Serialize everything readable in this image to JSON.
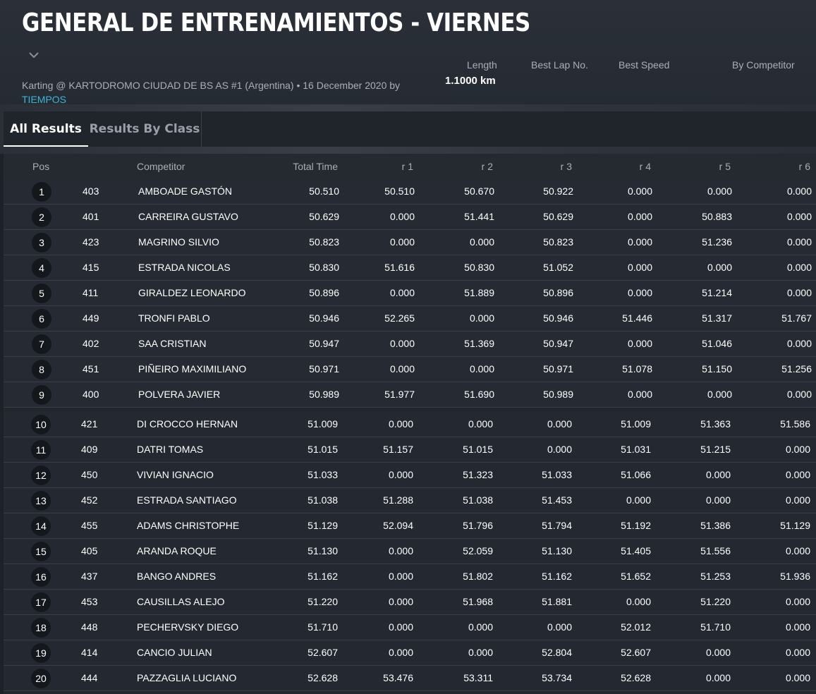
{
  "header": {
    "title": "GENERAL DE ENTRENAMIENTOS - VIERNES",
    "event_info": "Karting @ KARTODROMO CIUDAD DE BS AS #1 (Argentina) • 16 December 2020 by",
    "org_link": "TIEMPOS",
    "stats": {
      "length_label": "Length",
      "length_value": "1.1000 km",
      "best_lap_label": "Best Lap No.",
      "best_speed_label": "Best Speed",
      "by_competitor_label": "By Competitor"
    }
  },
  "tabs": {
    "all_results": "All Results",
    "results_by_class": "Results By Class"
  },
  "table": {
    "columns": {
      "pos": "Pos",
      "competitor": "Competitor",
      "total_time": "Total Time",
      "r1": "r 1",
      "r2": "r 2",
      "r3": "r 3",
      "r4": "r 4",
      "r5": "r 5",
      "r6": "r 6"
    },
    "rows": [
      {
        "pos": "1",
        "num": "403",
        "name": "AMBOADE GASTÓN",
        "total": "50.510",
        "r1": "50.510",
        "r2": "50.670",
        "r3": "50.922",
        "r4": "0.000",
        "r5": "0.000",
        "r6": "0.000"
      },
      {
        "pos": "2",
        "num": "401",
        "name": "CARREIRA GUSTAVO",
        "total": "50.629",
        "r1": "0.000",
        "r2": "51.441",
        "r3": "50.629",
        "r4": "0.000",
        "r5": "50.883",
        "r6": "0.000"
      },
      {
        "pos": "3",
        "num": "423",
        "name": "MAGRINO SILVIO",
        "total": "50.823",
        "r1": "0.000",
        "r2": "0.000",
        "r3": "50.823",
        "r4": "0.000",
        "r5": "51.236",
        "r6": "0.000"
      },
      {
        "pos": "4",
        "num": "415",
        "name": "ESTRADA NICOLAS",
        "total": "50.830",
        "r1": "51.616",
        "r2": "50.830",
        "r3": "51.052",
        "r4": "0.000",
        "r5": "0.000",
        "r6": "0.000"
      },
      {
        "pos": "5",
        "num": "411",
        "name": "GIRALDEZ LEONARDO",
        "total": "50.896",
        "r1": "0.000",
        "r2": "51.889",
        "r3": "50.896",
        "r4": "0.000",
        "r5": "51.214",
        "r6": "0.000"
      },
      {
        "pos": "6",
        "num": "449",
        "name": "TRONFI PABLO",
        "total": "50.946",
        "r1": "52.265",
        "r2": "0.000",
        "r3": "50.946",
        "r4": "51.446",
        "r5": "51.317",
        "r6": "51.767"
      },
      {
        "pos": "7",
        "num": "402",
        "name": "SAA CRISTIAN",
        "total": "50.947",
        "r1": "0.000",
        "r2": "51.369",
        "r3": "50.947",
        "r4": "0.000",
        "r5": "51.046",
        "r6": "0.000"
      },
      {
        "pos": "8",
        "num": "451",
        "name": "PIÑEIRO MAXIMILIANO",
        "total": "50.971",
        "r1": "0.000",
        "r2": "0.000",
        "r3": "50.971",
        "r4": "51.078",
        "r5": "51.150",
        "r6": "51.256"
      },
      {
        "pos": "9",
        "num": "400",
        "name": "POLVERA JAVIER",
        "total": "50.989",
        "r1": "51.977",
        "r2": "51.690",
        "r3": "50.989",
        "r4": "0.000",
        "r5": "0.000",
        "r6": "0.000"
      },
      {
        "pos": "10",
        "num": "421",
        "name": "DI CROCCO HERNAN",
        "total": "51.009",
        "r1": "0.000",
        "r2": "0.000",
        "r3": "0.000",
        "r4": "51.009",
        "r5": "51.363",
        "r6": "51.586"
      },
      {
        "pos": "11",
        "num": "409",
        "name": "DATRI TOMAS",
        "total": "51.015",
        "r1": "51.157",
        "r2": "51.015",
        "r3": "0.000",
        "r4": "51.031",
        "r5": "51.215",
        "r6": "0.000"
      },
      {
        "pos": "12",
        "num": "450",
        "name": "VIVIAN IGNACIO",
        "total": "51.033",
        "r1": "0.000",
        "r2": "51.323",
        "r3": "51.033",
        "r4": "51.066",
        "r5": "0.000",
        "r6": "0.000"
      },
      {
        "pos": "13",
        "num": "452",
        "name": "ESTRADA SANTIAGO",
        "total": "51.038",
        "r1": "51.288",
        "r2": "51.038",
        "r3": "51.453",
        "r4": "0.000",
        "r5": "0.000",
        "r6": "0.000"
      },
      {
        "pos": "14",
        "num": "455",
        "name": "ADAMS CHRISTOPHE",
        "total": "51.129",
        "r1": "52.094",
        "r2": "51.796",
        "r3": "51.794",
        "r4": "51.192",
        "r5": "51.386",
        "r6": "51.129"
      },
      {
        "pos": "15",
        "num": "405",
        "name": "ARANDA ROQUE",
        "total": "51.130",
        "r1": "0.000",
        "r2": "52.059",
        "r3": "51.130",
        "r4": "51.405",
        "r5": "51.556",
        "r6": "0.000"
      },
      {
        "pos": "16",
        "num": "437",
        "name": "BANGO ANDRES",
        "total": "51.162",
        "r1": "0.000",
        "r2": "51.802",
        "r3": "51.162",
        "r4": "51.652",
        "r5": "51.253",
        "r6": "51.936"
      },
      {
        "pos": "17",
        "num": "453",
        "name": "CAUSILLAS ALEJO",
        "total": "51.220",
        "r1": "0.000",
        "r2": "51.968",
        "r3": "51.881",
        "r4": "0.000",
        "r5": "51.220",
        "r6": "0.000"
      },
      {
        "pos": "18",
        "num": "448",
        "name": "PECHERVSKY DIEGO",
        "total": "51.710",
        "r1": "0.000",
        "r2": "0.000",
        "r3": "0.000",
        "r4": "52.012",
        "r5": "51.710",
        "r6": "0.000"
      },
      {
        "pos": "19",
        "num": "414",
        "name": "CANCIO JULIAN",
        "total": "52.607",
        "r1": "0.000",
        "r2": "0.000",
        "r3": "52.804",
        "r4": "52.607",
        "r5": "0.000",
        "r6": "0.000"
      },
      {
        "pos": "20",
        "num": "444",
        "name": "PAZZAGLIA LUCIANO",
        "total": "52.628",
        "r1": "53.476",
        "r2": "53.311",
        "r3": "53.734",
        "r4": "52.628",
        "r5": "0.000",
        "r6": "0.000"
      }
    ]
  },
  "colors": {
    "background": "#1e2128",
    "link": "#38b6d6",
    "badge": "#14171c"
  }
}
